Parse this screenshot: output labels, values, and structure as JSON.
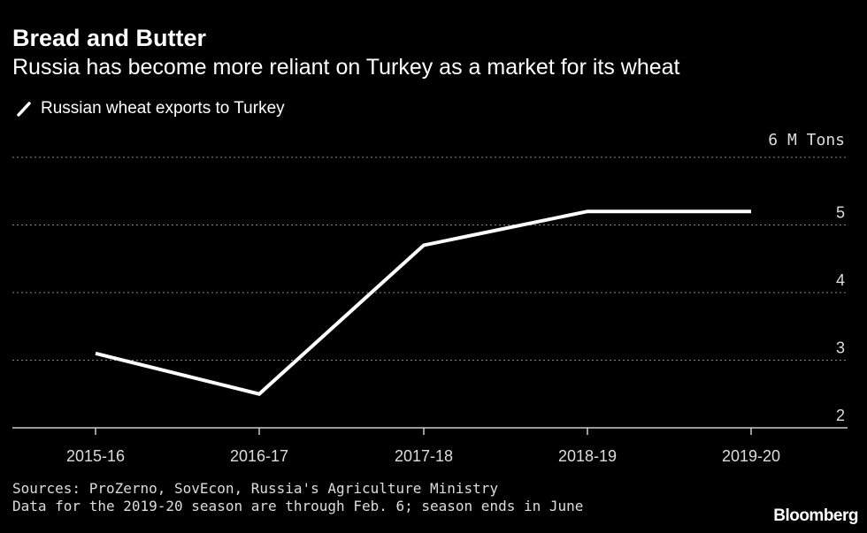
{
  "chart_data": {
    "type": "line",
    "title": "Bread and Butter",
    "subtitle": "Russia has become more reliant on Turkey as a market for its wheat",
    "categories": [
      "2015-16",
      "2016-17",
      "2017-18",
      "2018-19",
      "2019-20"
    ],
    "series": [
      {
        "name": "Russian wheat exports to Turkey",
        "values": [
          3.1,
          2.5,
          4.7,
          5.2,
          5.2
        ],
        "color": "#ffffff"
      }
    ],
    "y_ticks": [
      2,
      3,
      4,
      5,
      6
    ],
    "y_top_label": "6 M Tons",
    "ylim": [
      2,
      6
    ],
    "grid": true,
    "legend": "top-left",
    "sources": "Sources: ProZerno, SovEcon, Russia's Agriculture Ministry",
    "note": "Data for the 2019-20 season are through Feb. 6; season ends in June",
    "brand": "Bloomberg"
  }
}
